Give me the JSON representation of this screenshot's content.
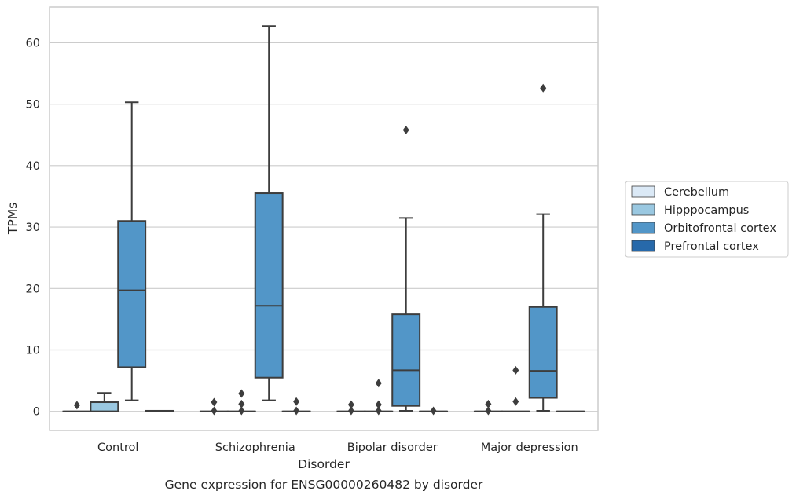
{
  "chart_data": {
    "type": "box",
    "title": "Gene expression for ENSG00000260482 by disorder",
    "xlabel": "Disorder",
    "ylabel": "TPMs",
    "categories": [
      "Control",
      "Schizophrenia",
      "Bipolar disorder",
      "Major depression"
    ],
    "ylim": [
      -3.1,
      65.8
    ],
    "yticks": [
      0,
      10,
      20,
      30,
      40,
      50,
      60
    ],
    "grid": "horizontal",
    "legend_position": "right",
    "colors": {
      "Cerebellum": "#dbe9f6",
      "Hipppocampus": "#9ac8e1",
      "Orbitofrontal cortex": "#5296c8",
      "Prefrontal cortex": "#2769aa",
      "line": "#3d3d3d",
      "grid": "#cccccc",
      "frame": "#cccccc"
    },
    "series": [
      {
        "name": "Cerebellum",
        "boxes": [
          {
            "min": 0,
            "q1": 0,
            "median": 0,
            "q3": 0,
            "max": 0,
            "outliers": [
              1.0
            ]
          },
          {
            "min": 0,
            "q1": 0,
            "median": 0,
            "q3": 0,
            "max": 0,
            "outliers": [
              1.5,
              0.1
            ]
          },
          {
            "min": 0,
            "q1": 0,
            "median": 0,
            "q3": 0,
            "max": 0,
            "outliers": [
              1.1,
              0.1
            ]
          },
          {
            "min": 0,
            "q1": 0,
            "median": 0,
            "q3": 0,
            "max": 0,
            "outliers": [
              1.2,
              0.1
            ]
          }
        ]
      },
      {
        "name": "Hipppocampus",
        "boxes": [
          {
            "min": 0,
            "q1": 0,
            "median": 0,
            "q3": 1.5,
            "max": 3.0,
            "outliers": []
          },
          {
            "min": 0,
            "q1": 0,
            "median": 0,
            "q3": 0,
            "max": 0,
            "outliers": [
              2.9,
              1.2,
              0.1
            ]
          },
          {
            "min": 0,
            "q1": 0,
            "median": 0,
            "q3": 0,
            "max": 0,
            "outliers": [
              4.6,
              1.1,
              0.1
            ]
          },
          {
            "min": 0,
            "q1": 0,
            "median": 0,
            "q3": 0,
            "max": 0,
            "outliers": [
              6.7,
              1.6
            ]
          }
        ]
      },
      {
        "name": "Orbitofrontal cortex",
        "boxes": [
          {
            "min": 1.8,
            "q1": 7.2,
            "median": 19.7,
            "q3": 31.0,
            "max": 50.3,
            "outliers": []
          },
          {
            "min": 1.8,
            "q1": 5.5,
            "median": 17.2,
            "q3": 35.5,
            "max": 62.7,
            "outliers": []
          },
          {
            "min": 0.1,
            "q1": 0.9,
            "median": 6.7,
            "q3": 15.8,
            "max": 31.5,
            "outliers": [
              45.8
            ]
          },
          {
            "min": 0.1,
            "q1": 2.2,
            "median": 6.6,
            "q3": 17.0,
            "max": 32.1,
            "outliers": [
              52.6
            ]
          }
        ]
      },
      {
        "name": "Prefrontal cortex",
        "boxes": [
          {
            "min": 0,
            "q1": 0,
            "median": 0,
            "q3": 0.1,
            "max": 0.1,
            "outliers": []
          },
          {
            "min": 0,
            "q1": 0,
            "median": 0,
            "q3": 0,
            "max": 0,
            "outliers": [
              1.6,
              0.1
            ]
          },
          {
            "min": 0,
            "q1": 0,
            "median": 0,
            "q3": 0,
            "max": 0,
            "outliers": [
              0.1
            ]
          },
          {
            "min": 0,
            "q1": 0,
            "median": 0,
            "q3": 0,
            "max": 0,
            "outliers": []
          }
        ]
      }
    ]
  }
}
